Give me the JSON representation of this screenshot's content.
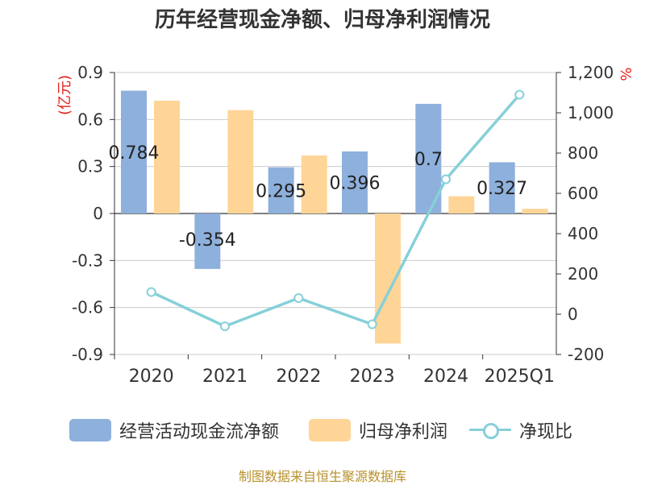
{
  "colors": {
    "cashflow": "#8eb0dc",
    "profit": "#fed597",
    "ratio": "#86d0d8",
    "unit": "#e0231b",
    "source": "#b8912b"
  },
  "chart_data": {
    "type": "bar",
    "title": "历年经营现金净额、归母净利润情况",
    "categories": [
      "2020",
      "2021",
      "2022",
      "2023",
      "2024",
      "2025Q1"
    ],
    "left_axis": {
      "unit": "(亿元)",
      "ylim": [
        -0.9,
        0.9
      ],
      "ticks": [
        "0.9",
        "0.6",
        "0.3",
        "0",
        "-0.3",
        "-0.6",
        "-0.9"
      ],
      "tick_values": [
        0.9,
        0.6,
        0.3,
        0,
        -0.3,
        -0.6,
        -0.9
      ]
    },
    "right_axis": {
      "unit": "%",
      "ylim": [
        -200,
        1200
      ],
      "ticks": [
        "1,200",
        "1,000",
        "800",
        "600",
        "400",
        "200",
        "0",
        "-200"
      ],
      "tick_values": [
        1200,
        1000,
        800,
        600,
        400,
        200,
        0,
        -200
      ]
    },
    "grid": true,
    "legend_position": "bottom",
    "series": [
      {
        "name": "经营活动现金流净额",
        "kind": "bar",
        "axis": "left",
        "values": [
          0.784,
          -0.354,
          0.295,
          0.396,
          0.7,
          0.327
        ],
        "labels": [
          "0.784",
          "-0.354",
          "0.295",
          "0.396",
          "0.7",
          "0.327"
        ]
      },
      {
        "name": "归母净利润",
        "kind": "bar",
        "axis": "left",
        "values": [
          0.72,
          0.66,
          0.37,
          -0.83,
          0.11,
          0.03
        ]
      },
      {
        "name": "净现比",
        "kind": "line",
        "axis": "right",
        "values": [
          110,
          -60,
          80,
          -50,
          670,
          1090
        ]
      }
    ]
  },
  "source_text": "制图数据来自恒生聚源数据库"
}
